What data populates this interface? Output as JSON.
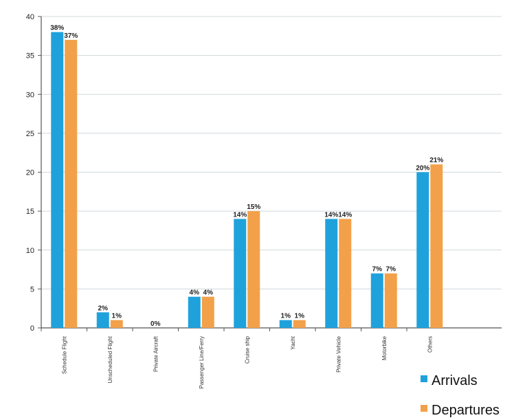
{
  "chart_data": {
    "type": "bar",
    "categories": [
      "Schedule Flight",
      "Unscheduled Flight",
      "Private Aircraft",
      "Passenger Line/Ferry",
      "Cruise ship",
      "Yacht",
      "Private Vehicle",
      "Motorbike",
      "Others"
    ],
    "series": [
      {
        "name": "Arrivals",
        "color": "#1fa2dc",
        "values": [
          38,
          2,
          0,
          4,
          14,
          1,
          14,
          7,
          20
        ],
        "labels": [
          "38%",
          "2%",
          "0%",
          "4%",
          "14%",
          "1%",
          "14%",
          "7%",
          "20%"
        ]
      },
      {
        "name": "Departures",
        "color": "#f2a14a",
        "values": [
          37,
          1,
          0,
          4,
          15,
          1,
          14,
          7,
          21
        ],
        "labels": [
          "37%",
          "1%",
          "",
          "4%",
          "15%",
          "1%",
          "14%",
          "7%",
          "21%"
        ]
      }
    ],
    "ylim": [
      0,
      40
    ],
    "yticks": [
      0,
      5,
      10,
      15,
      20,
      25,
      30,
      35,
      40
    ],
    "grid": true,
    "legend": "bottom-right",
    "title": "",
    "xlabel": "",
    "ylabel": ""
  }
}
